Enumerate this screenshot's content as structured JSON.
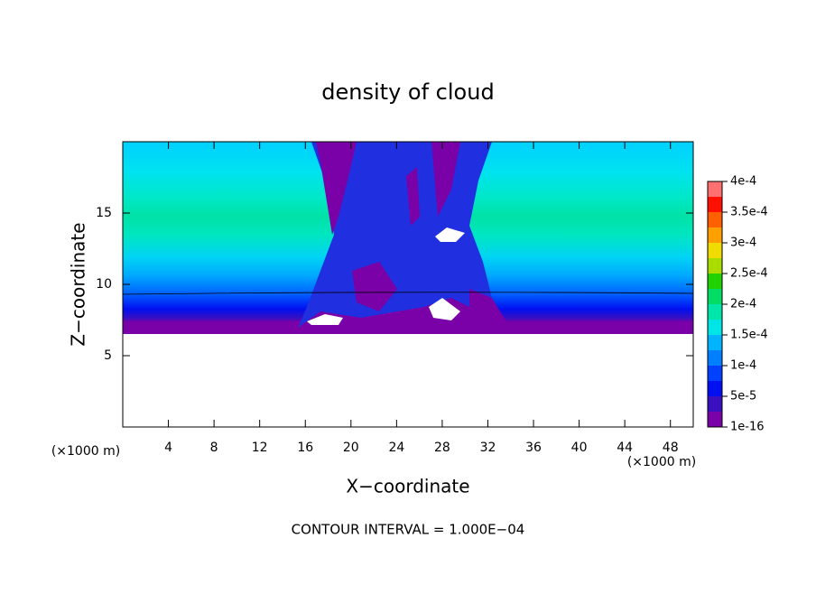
{
  "chart_data": {
    "type": "contour",
    "title": "density of cloud",
    "x_label": "X−coordinate",
    "y_label": "Z−coordinate",
    "x_unit_label": "(×1000 m)",
    "y_unit_label": "(×1000 m)",
    "note": "CONTOUR INTERVAL = 1.000E−04",
    "xlim": [
      0,
      50
    ],
    "ylim": [
      0,
      20
    ],
    "xticks": [
      4,
      8,
      12,
      16,
      20,
      24,
      28,
      32,
      36,
      40,
      44,
      48
    ],
    "yticks": [
      5,
      10,
      15
    ],
    "colorbar": {
      "lim": [
        1e-16,
        0.0004
      ],
      "ticks": [
        {
          "value": 1e-16,
          "label": "1e-16"
        },
        {
          "value": 5e-05,
          "label": "5e-5"
        },
        {
          "value": 0.0001,
          "label": "1e-4"
        },
        {
          "value": 0.00015,
          "label": "1.5e-4"
        },
        {
          "value": 0.0002,
          "label": "2e-4"
        },
        {
          "value": 0.00025,
          "label": "2.5e-4"
        },
        {
          "value": 0.0003,
          "label": "3e-4"
        },
        {
          "value": 0.00035,
          "label": "3.5e-4"
        },
        {
          "value": 0.0004,
          "label": "4e-4"
        }
      ],
      "colors": [
        "#7a00a8",
        "#3a10c0",
        "#0010f0",
        "#0040ff",
        "#0080ff",
        "#00b4ff",
        "#00e6e6",
        "#00e6aa",
        "#00dc64",
        "#20d200",
        "#aadc00",
        "#f0dc00",
        "#ffa000",
        "#ff6000",
        "#ff1000",
        "#ff7070"
      ]
    }
  }
}
